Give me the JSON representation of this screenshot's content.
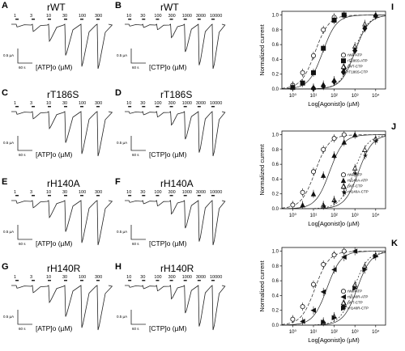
{
  "figure": {
    "trace_panels": [
      {
        "letter": "A",
        "title": "rWT",
        "condition": "[ATP]o (µM)",
        "concentrations": [
          "1",
          "3",
          "10",
          "30",
          "100",
          "300"
        ],
        "scalebar": {
          "current": "0.5 µA",
          "time": "60 s"
        }
      },
      {
        "letter": "B",
        "title": "rWT",
        "condition": "[CTP]o (µM)",
        "concentrations": [
          "10",
          "30",
          "100",
          "300",
          "1000",
          "3000",
          "10000"
        ],
        "scalebar": {
          "current": "0.5 µA",
          "time": "60 s"
        }
      },
      {
        "letter": "C",
        "title": "rT186S",
        "condition": "[ATP]o (µM)",
        "concentrations": [
          "1",
          "3",
          "10",
          "30",
          "100",
          "300"
        ],
        "scalebar": {
          "current": "0.5 µA",
          "time": "60 s"
        }
      },
      {
        "letter": "D",
        "title": "rT186S",
        "condition": "[CTP]o (µM)",
        "concentrations": [
          "10",
          "30",
          "100",
          "300",
          "1000",
          "3000",
          "10000"
        ],
        "scalebar": {
          "current": "0.5 µA",
          "time": "60 s"
        }
      },
      {
        "letter": "E",
        "title": "rH140A",
        "condition": "[ATP]o (µM)",
        "concentrations": [
          "1",
          "3",
          "10",
          "30",
          "100",
          "300"
        ],
        "scalebar": {
          "current": "0.5 µA",
          "time": "60 s"
        }
      },
      {
        "letter": "F",
        "title": "rH140A",
        "condition": "[CTP]o (µM)",
        "concentrations": [
          "10",
          "30",
          "100",
          "300",
          "1000",
          "3000",
          "10000"
        ],
        "scalebar": {
          "current": "0.5 µA",
          "time": "60 s"
        }
      },
      {
        "letter": "G",
        "title": "rH140R",
        "condition": "[ATP]o (µM)",
        "concentrations": [
          "1",
          "3",
          "10",
          "30",
          "100",
          "300"
        ],
        "scalebar": {
          "current": "0.5 µA",
          "time": "60 s"
        }
      },
      {
        "letter": "H",
        "title": "rH140R",
        "condition": "[CTP]o (µM)",
        "concentrations": [
          "10",
          "30",
          "100",
          "300",
          "1000",
          "3000",
          "10000"
        ],
        "scalebar": {
          "current": "0.5 µA",
          "time": "60 s"
        }
      }
    ],
    "scalebar_colors": {
      "stroke": "#222222"
    }
  },
  "chart_data": [
    {
      "panel": "I",
      "type": "scatter",
      "ylabel": "Normalized current",
      "xlabel": "Log[Agonist]o (µM)",
      "xscale": "log",
      "xlim": [
        0.3,
        30000
      ],
      "ylim": [
        0,
        1.05
      ],
      "xticks": [
        "10⁰",
        "10¹",
        "10²",
        "10³",
        "10⁴"
      ],
      "yticks": [
        "0.0",
        "0.2",
        "0.4",
        "0.6",
        "0.8",
        "1.0"
      ],
      "legend_position": "center-right",
      "series": [
        {
          "name": "rWT-ATP",
          "marker": "open-circle",
          "ec50": 12,
          "x": [
            1,
            3,
            10,
            30,
            100,
            300
          ],
          "y": [
            0.05,
            0.22,
            0.45,
            0.8,
            0.97,
            1.0
          ]
        },
        {
          "name": "rT186S-ATP",
          "marker": "filled-square",
          "ec50": 28,
          "x": [
            1,
            3,
            10,
            30,
            100,
            300
          ],
          "y": [
            0.02,
            0.08,
            0.22,
            0.55,
            0.93,
            1.0
          ]
        },
        {
          "name": "rWT-CTP",
          "marker": "open-triangle",
          "ec50": 900,
          "x": [
            10,
            30,
            100,
            300,
            1000,
            3000,
            10000
          ],
          "y": [
            0.02,
            0.06,
            0.12,
            0.3,
            0.58,
            0.88,
            1.0
          ]
        },
        {
          "name": "rT186S-CTP",
          "marker": "filled-diamond",
          "ec50": 1000,
          "x": [
            10,
            30,
            100,
            300,
            1000,
            3000,
            10000
          ],
          "y": [
            0.01,
            0.04,
            0.1,
            0.28,
            0.52,
            0.82,
            0.99
          ]
        }
      ]
    },
    {
      "panel": "J",
      "type": "scatter",
      "ylabel": "Normalized current",
      "xlabel": "Log[Agonist]o (µM)",
      "xscale": "log",
      "xlim": [
        0.3,
        30000
      ],
      "ylim": [
        0,
        1.05
      ],
      "xticks": [
        "10⁰",
        "10¹",
        "10²",
        "10³",
        "10⁴"
      ],
      "yticks": [
        "0.0",
        "0.2",
        "0.4",
        "0.6",
        "0.8",
        "1.0"
      ],
      "legend_position": "center-right",
      "series": [
        {
          "name": "rWT-ATP",
          "marker": "open-circle",
          "ec50": 12,
          "x": [
            1,
            3,
            10,
            30,
            100,
            300
          ],
          "y": [
            0.05,
            0.22,
            0.5,
            0.8,
            0.95,
            1.0
          ]
        },
        {
          "name": "rH140A-ATP",
          "marker": "filled-triangle",
          "ec50": 60,
          "x": [
            3,
            10,
            30,
            100,
            300,
            1000
          ],
          "y": [
            0.05,
            0.2,
            0.45,
            0.72,
            0.9,
            1.0
          ]
        },
        {
          "name": "rWT-CTP",
          "marker": "open-triangle",
          "ec50": 900,
          "x": [
            30,
            100,
            300,
            1000,
            3000,
            10000
          ],
          "y": [
            0.05,
            0.12,
            0.3,
            0.55,
            0.8,
            0.95
          ]
        },
        {
          "name": "rH140A-CTP",
          "marker": "filled-star",
          "ec50": 1500,
          "x": [
            30,
            100,
            300,
            1000,
            3000,
            10000
          ],
          "y": [
            0.04,
            0.1,
            0.22,
            0.48,
            0.72,
            0.92
          ]
        }
      ]
    },
    {
      "panel": "K",
      "type": "scatter",
      "ylabel": "Normalized current",
      "xlabel": "Log[Agonist]o (µM)",
      "xscale": "log",
      "xlim": [
        0.3,
        30000
      ],
      "ylim": [
        0,
        1.05
      ],
      "xticks": [
        "10⁰",
        "10¹",
        "10²",
        "10³",
        "10⁴"
      ],
      "yticks": [
        "0.0",
        "0.2",
        "0.4",
        "0.6",
        "0.8",
        "1.0"
      ],
      "legend_position": "center-right",
      "series": [
        {
          "name": "rWT-ATP",
          "marker": "open-circle",
          "ec50": 12,
          "x": [
            1,
            3,
            10,
            30,
            100,
            300
          ],
          "y": [
            0.08,
            0.25,
            0.55,
            0.82,
            0.95,
            1.0
          ]
        },
        {
          "name": "rH140R-ATP",
          "marker": "filled-triangle-left",
          "ec50": 45,
          "x": [
            3,
            10,
            30,
            100,
            300,
            1000
          ],
          "y": [
            0.05,
            0.2,
            0.45,
            0.75,
            0.92,
            1.0
          ]
        },
        {
          "name": "rWT-CTP",
          "marker": "open-triangle",
          "ec50": 900,
          "x": [
            30,
            100,
            300,
            1000,
            3000,
            10000
          ],
          "y": [
            0.05,
            0.12,
            0.3,
            0.55,
            0.8,
            0.95
          ]
        },
        {
          "name": "rH140R-CTP",
          "marker": "filled-triangle-right",
          "ec50": 1300,
          "x": [
            30,
            100,
            300,
            1000,
            3000,
            10000
          ],
          "y": [
            0.04,
            0.1,
            0.25,
            0.5,
            0.75,
            0.93
          ]
        }
      ]
    }
  ]
}
